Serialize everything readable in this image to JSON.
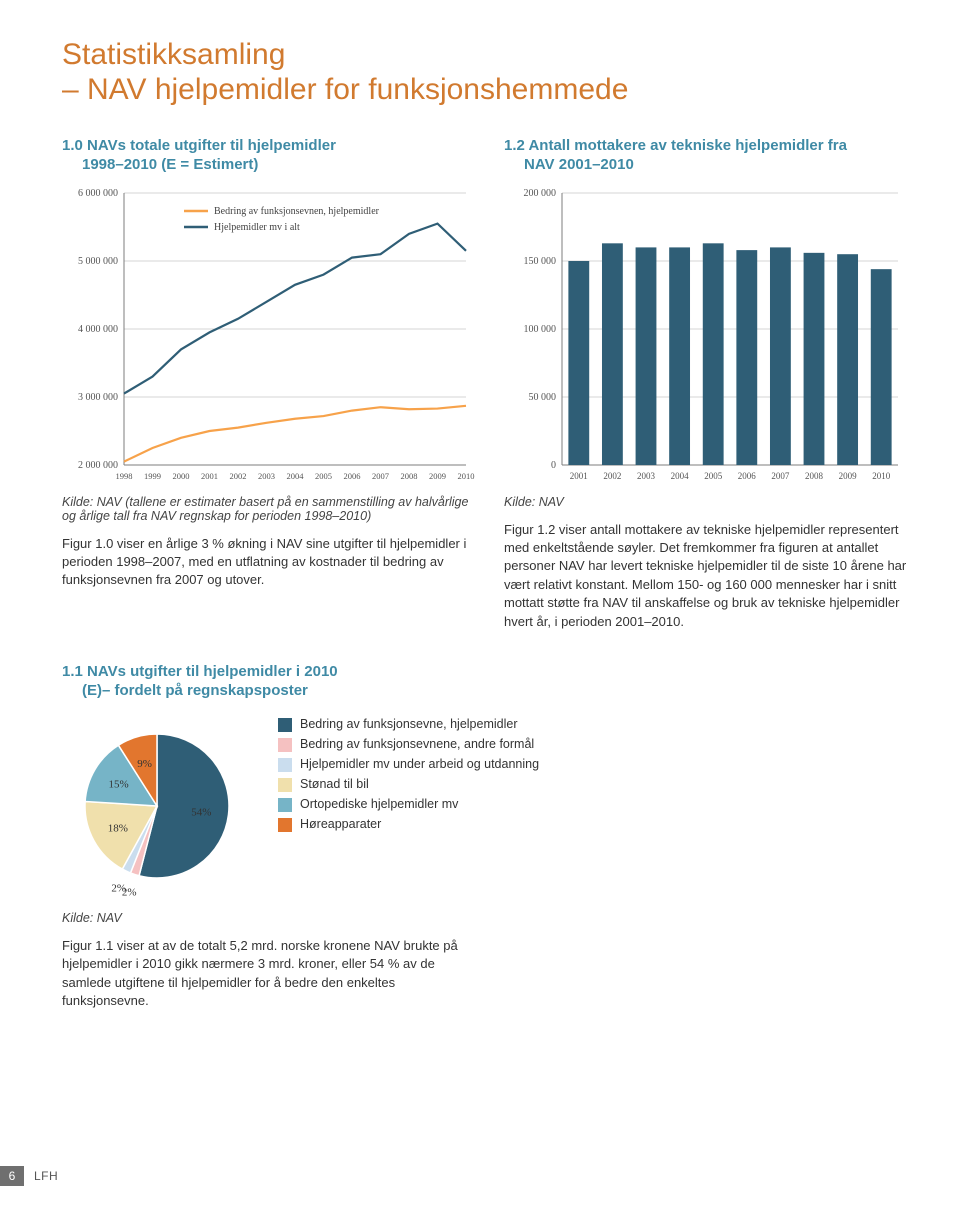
{
  "page_title": "Statistikksamling\n– NAV hjelpemidler for funksjonshemmede",
  "footer": {
    "page": "6",
    "brand": "LFH"
  },
  "fig10": {
    "title_l1": "1.0 NAVs totale utgifter til hjelpemidler",
    "title_l2": "1998–2010 (E = Estimert)",
    "legend": [
      {
        "label": "Bedring av funksjonsevnen, hjelpemidler",
        "color": "#f7a24a"
      },
      {
        "label": "Hjelpemidler mv i alt",
        "color": "#2f5e76"
      }
    ],
    "years": [
      "1998",
      "1999",
      "2000",
      "2001",
      "2002",
      "2003",
      "2004",
      "2005",
      "2006",
      "2007",
      "2008",
      "2009",
      "2010"
    ],
    "y_ticks": [
      2000000,
      3000000,
      4000000,
      5000000,
      6000000
    ],
    "y_labels": [
      "2 000 000",
      "3 000 000",
      "4 000 000",
      "5 000 000",
      "6 000 000"
    ],
    "series_orange": [
      2050000,
      2250000,
      2400000,
      2500000,
      2550000,
      2620000,
      2680000,
      2720000,
      2800000,
      2850000,
      2820000,
      2830000,
      2870000
    ],
    "series_navy": [
      3050000,
      3300000,
      3700000,
      3950000,
      4150000,
      4400000,
      4650000,
      4800000,
      5050000,
      5100000,
      5400000,
      5550000,
      5150000
    ],
    "axis_color": "#7d7d7d",
    "grid_color": "#cfcfcf",
    "label_fs": 9,
    "source": "Kilde: NAV (tallene er estimater basert på en sammenstilling av halvårlige og årlige tall fra NAV regnskap for perioden 1998–2010)",
    "body": "Figur 1.0 viser en årlige 3 % økning i NAV sine utgifter til hjelpemidler i perioden 1998–2007, med en utflatning av kostnader til bedring av funksjonsevnen fra 2007 og utover."
  },
  "fig12": {
    "title_l1": "1.2 Antall mottakere av tekniske hjelpemidler fra",
    "title_l2": "NAV 2001–2010",
    "years": [
      "2001",
      "2002",
      "2003",
      "2004",
      "2005",
      "2006",
      "2007",
      "2008",
      "2009",
      "2010"
    ],
    "y_ticks": [
      0,
      50000,
      100000,
      150000,
      200000
    ],
    "y_labels": [
      "0",
      "50 000",
      "100 000",
      "150 000",
      "200 000"
    ],
    "values": [
      150000,
      163000,
      160000,
      160000,
      163000,
      158000,
      160000,
      156000,
      155000,
      144000
    ],
    "bar_color": "#2f5e76",
    "axis_color": "#7d7d7d",
    "source": "Kilde: NAV",
    "body": "Figur 1.2 viser antall mottakere av tekniske hjelpemidler representert med enkeltstående søyler. Det fremkommer fra figuren at antallet personer NAV har levert tekniske hjelpemidler til de siste 10 årene har vært relativt konstant. Mellom 150- og 160 000 mennesker har i snitt mottatt støtte fra NAV til anskaffelse og bruk av tekniske hjelpemidler hvert år, i perioden 2001–2010."
  },
  "fig11": {
    "title_l1": "1.1 NAVs utgifter til hjelpemidler i 2010",
    "title_l2": "(E)– fordelt på regnskapsposter",
    "slices": [
      {
        "label": "Bedring av funksjonsevne, hjelpemidler",
        "pct": 54,
        "color": "#2f5e76",
        "show": "54%"
      },
      {
        "label": "Bedring av funksjonsevnene, andre formål",
        "pct": 2,
        "color": "#f5c1c1",
        "show": "2%"
      },
      {
        "label": "Hjelpemidler mv under arbeid og utdanning",
        "pct": 2,
        "color": "#caddee",
        "show": "2%"
      },
      {
        "label": "Stønad til bil",
        "pct": 18,
        "color": "#f0e0ac",
        "show": "18%"
      },
      {
        "label": "Ortopediske hjelpemidler mv",
        "pct": 15,
        "color": "#76b4c7",
        "show": "15%"
      },
      {
        "label": "Høreapparater",
        "pct": 9,
        "color": "#e2762e",
        "show": "9%"
      }
    ],
    "stroke": "#ffffff",
    "source": "Kilde: NAV",
    "body": "Figur 1.1 viser at av de totalt 5,2 mrd. norske kronene NAV brukte på hjelpemidler i 2010 gikk nærmere 3 mrd. kroner, eller 54 % av de samlede utgiftene til hjelpemidler for å bedre den enkeltes funksjonsevne."
  }
}
